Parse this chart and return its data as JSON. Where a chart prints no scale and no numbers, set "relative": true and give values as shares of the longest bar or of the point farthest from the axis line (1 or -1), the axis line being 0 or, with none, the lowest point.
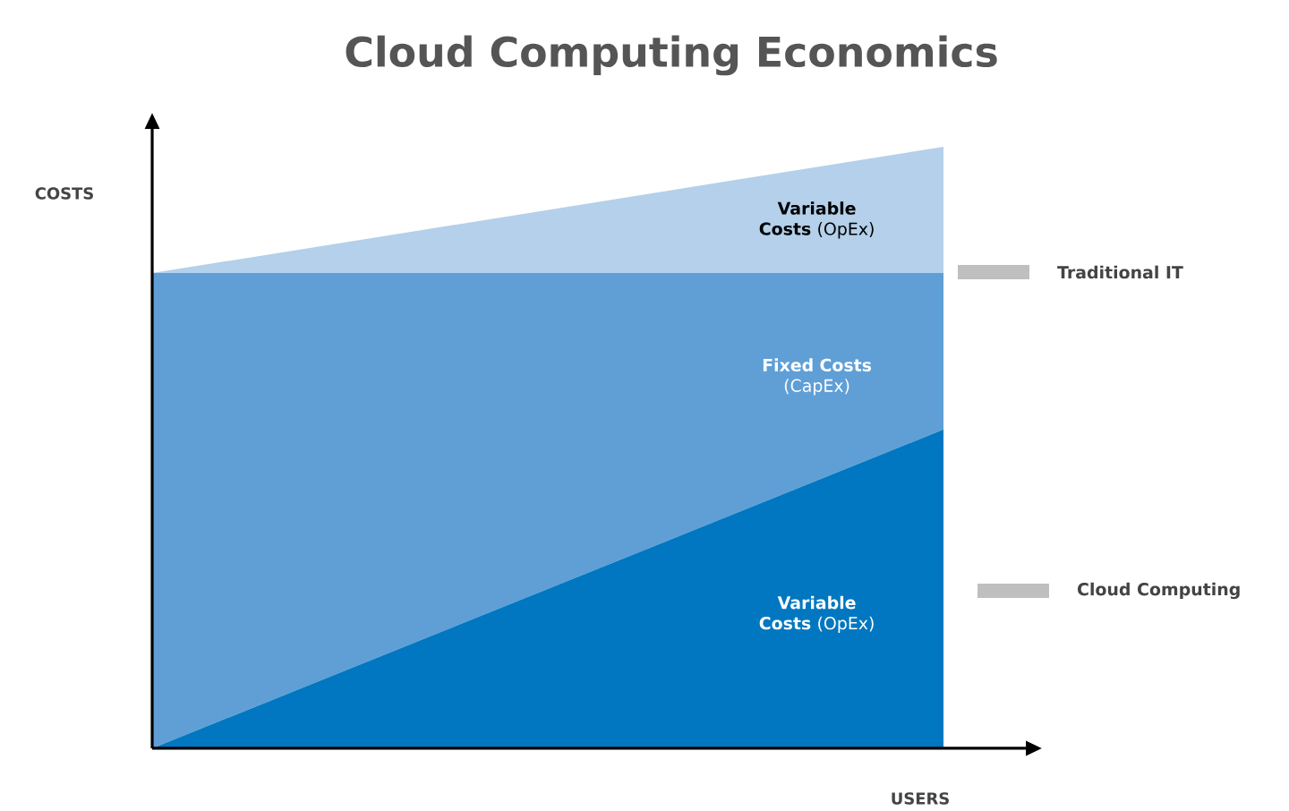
{
  "chart_data": {
    "type": "area",
    "title": "Cloud Computing Economics",
    "xlabel": "USERS",
    "ylabel": "COSTS",
    "relative": true,
    "stacked": true,
    "categories": [
      null,
      null
    ],
    "series": [
      {
        "name": "**Variable Costs** (OpEx)",
        "color": "#0077c0",
        "values": [
          0,
          0.53
        ]
      },
      {
        "name": "**Fixed Costs** (CapEx)",
        "color": "#5f9fd6",
        "values": [
          0.79,
          0.26
        ]
      },
      {
        "name": "**Variable Costs** (OpEx)",
        "color": "#b4d0ea",
        "values": [
          0,
          0.21
        ]
      }
    ],
    "annotations": [
      "Traditional IT",
      "Cloud Computing"
    ]
  }
}
